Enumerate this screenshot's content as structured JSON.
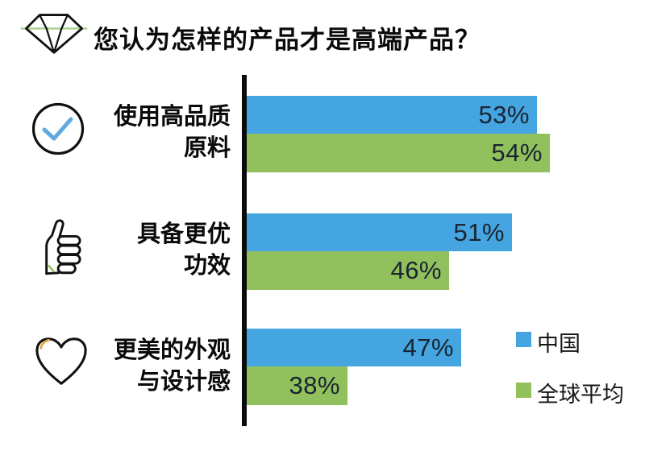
{
  "chart_data": {
    "type": "bar",
    "orientation": "horizontal",
    "title": "您认为怎样的产品才是高端产品？",
    "categories": [
      "使用高品质原料",
      "具备更优功效",
      "更美的外观与设计感"
    ],
    "series": [
      {
        "name": "中国",
        "color": "#45A5E0",
        "values": [
          53,
          51,
          47
        ]
      },
      {
        "name": "全球平均",
        "color": "#90C15C",
        "values": [
          54,
          46,
          38
        ]
      }
    ],
    "value_suffix": "%",
    "value_labels": [
      "53%",
      "51%",
      "47%",
      "54%",
      "46%",
      "38%"
    ],
    "xlim": [
      30,
      60
    ],
    "grid": false,
    "legend_position": "right"
  },
  "header_icon": "diamond-icon",
  "rows": [
    {
      "icon": "check-circle-icon",
      "label_line1": "使用高品质",
      "label_line2": "原料"
    },
    {
      "icon": "thumbs-up-icon",
      "label_line1": "具备更优",
      "label_line2": "功效"
    },
    {
      "icon": "heart-icon",
      "label_line1": "更美的外观",
      "label_line2": "与设计感"
    }
  ],
  "colors": {
    "china_blue": "#45A5E0",
    "global_green": "#90C15C",
    "value_label": "#1A2433",
    "axis_black": "#0B0B0B",
    "diamond_line_green": "#A9D18E",
    "check_blue": "#5FA9DC",
    "heart_arc_orange": "#E9A13B"
  }
}
